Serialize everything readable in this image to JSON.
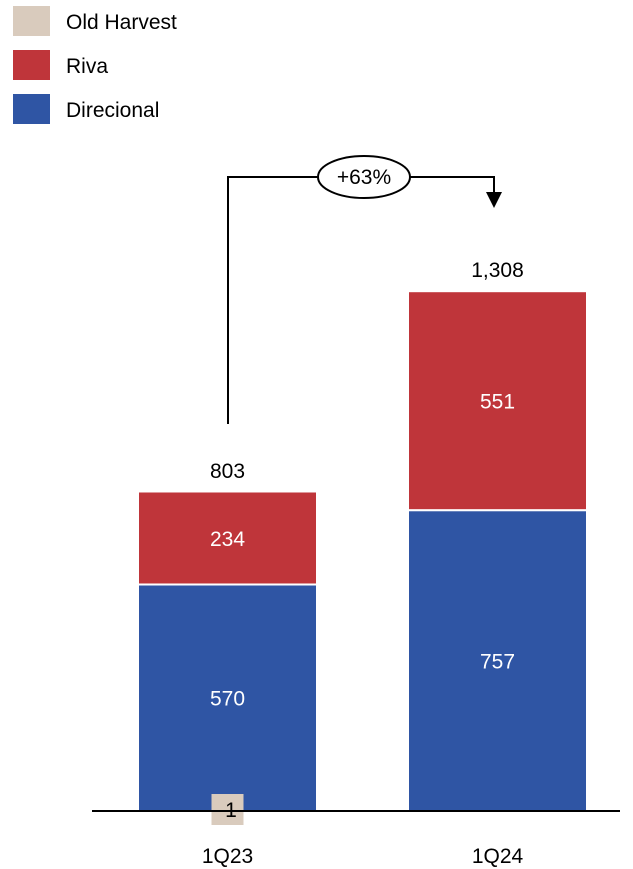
{
  "chart_data": {
    "type": "bar",
    "stacked": true,
    "categories": [
      "1Q23",
      "1Q24"
    ],
    "series": [
      {
        "name": "Old Harvest",
        "color": "#d9cbbd",
        "values": [
          -1,
          0
        ]
      },
      {
        "name": "Riva",
        "color": "#bf353a",
        "values": [
          234,
          551
        ]
      },
      {
        "name": "Direcional",
        "color": "#2f55a4",
        "values": [
          570,
          757
        ]
      }
    ],
    "totals": [
      803,
      1308
    ],
    "total_labels": [
      "803",
      "1,308"
    ],
    "segment_labels": {
      "Old Harvest": [
        "-1",
        ""
      ],
      "Riva": [
        "234",
        "551"
      ],
      "Direcional": [
        "570",
        "757"
      ]
    },
    "growth_callout": "+63%",
    "legend_position": "top-left",
    "grid": false,
    "ylim": [
      0,
      1400
    ]
  }
}
